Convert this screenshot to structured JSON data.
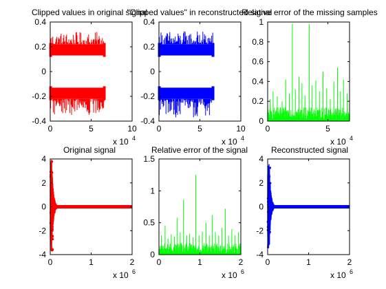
{
  "chart_data": [
    {
      "type": "scatter",
      "title": "Clipped values in original signal",
      "xlim": [
        0,
        100000
      ],
      "ylim": [
        -0.4,
        0.4
      ],
      "xticks": [
        "0",
        "5",
        "10"
      ],
      "yticks": [
        "-0.4",
        "-0.2",
        "0",
        "0.2",
        "0.4"
      ],
      "x_multiplier": {
        "base": "x 10",
        "exp": "4"
      },
      "color": "#ff0000",
      "series": [
        {
          "kind": "band",
          "x": [
            500,
            66000
          ],
          "core": [
            0.13,
            0.22
          ],
          "extent": [
            0.12,
            0.32
          ]
        },
        {
          "kind": "band",
          "x": [
            500,
            66000
          ],
          "core": [
            -0.22,
            -0.13
          ],
          "extent": [
            -0.35,
            -0.12
          ]
        }
      ]
    },
    {
      "type": "scatter",
      "title": "\"Clipped values\" in reconstructed signal",
      "xlim": [
        0,
        100000
      ],
      "ylim": [
        -0.4,
        0.4
      ],
      "xticks": [
        "0",
        "5",
        "10"
      ],
      "yticks": [
        "-0.4",
        "-0.2",
        "0",
        "0.2",
        "0.4"
      ],
      "x_multiplier": {
        "base": "x 10",
        "exp": "4"
      },
      "color": "#0000ff",
      "series": [
        {
          "kind": "band",
          "x": [
            500,
            66000
          ],
          "core": [
            0.13,
            0.22
          ],
          "extent": [
            0.12,
            0.33
          ]
        },
        {
          "kind": "band",
          "x": [
            500,
            66000
          ],
          "core": [
            -0.22,
            -0.13
          ],
          "extent": [
            -0.37,
            -0.12
          ]
        }
      ]
    },
    {
      "type": "line",
      "title": "Relative error of the missing samples",
      "xlim": [
        0,
        68000
      ],
      "ylim": [
        0,
        1
      ],
      "xticks": [
        "0",
        "5"
      ],
      "yticks": [
        "0",
        "0.2",
        "0.4",
        "0.6",
        "0.8",
        "1"
      ],
      "x_multiplier": {
        "base": "x 10",
        "exp": "4"
      },
      "color": "#00ff00",
      "series": [
        {
          "kind": "spiky",
          "base": [
            0.02,
            0.14
          ],
          "spikes": [
            {
              "x": 2000,
              "y": 0.22
            },
            {
              "x": 4500,
              "y": 0.3
            },
            {
              "x": 8000,
              "y": 0.25
            },
            {
              "x": 12000,
              "y": 0.2
            },
            {
              "x": 15000,
              "y": 0.42
            },
            {
              "x": 18000,
              "y": 0.28
            },
            {
              "x": 20500,
              "y": 0.98
            },
            {
              "x": 23000,
              "y": 0.32
            },
            {
              "x": 26000,
              "y": 0.45
            },
            {
              "x": 28500,
              "y": 0.38
            },
            {
              "x": 31000,
              "y": 0.26
            },
            {
              "x": 34500,
              "y": 0.98
            },
            {
              "x": 37000,
              "y": 0.36
            },
            {
              "x": 40000,
              "y": 0.41
            },
            {
              "x": 43000,
              "y": 0.3
            },
            {
              "x": 46000,
              "y": 0.5
            },
            {
              "x": 49000,
              "y": 0.33
            },
            {
              "x": 52000,
              "y": 0.22
            },
            {
              "x": 55000,
              "y": 0.4
            },
            {
              "x": 58000,
              "y": 0.54
            },
            {
              "x": 60500,
              "y": 0.3
            },
            {
              "x": 63000,
              "y": 0.42
            },
            {
              "x": 66000,
              "y": 0.28
            }
          ]
        }
      ]
    },
    {
      "type": "line",
      "title": "Original signal",
      "xlim": [
        0,
        2000000
      ],
      "ylim": [
        -4,
        4
      ],
      "xticks": [
        "0",
        "1",
        "2"
      ],
      "yticks": [
        "-4",
        "-2",
        "0",
        "2",
        "4"
      ],
      "x_multiplier": {
        "base": "x 10",
        "exp": "6"
      },
      "color": "#ff0000",
      "series": [
        {
          "kind": "decay",
          "peak": 4,
          "decay_end": 200000
        }
      ]
    },
    {
      "type": "line",
      "title": "Relative error of the signal",
      "xlim": [
        0,
        2000000
      ],
      "ylim": [
        0,
        1.5
      ],
      "xticks": [
        "0",
        "1",
        "2"
      ],
      "yticks": [
        "0",
        "0.5",
        "1",
        "1.5"
      ],
      "x_multiplier": {
        "base": "x 10",
        "exp": "6"
      },
      "color": "#00ff00",
      "series": [
        {
          "kind": "spiky",
          "base": [
            0.02,
            0.18
          ],
          "spikes": [
            {
              "x": 60000,
              "y": 0.3
            },
            {
              "x": 150000,
              "y": 0.45
            },
            {
              "x": 220000,
              "y": 0.25
            },
            {
              "x": 300000,
              "y": 0.32
            },
            {
              "x": 380000,
              "y": 0.28
            },
            {
              "x": 450000,
              "y": 0.58
            },
            {
              "x": 520000,
              "y": 0.35
            },
            {
              "x": 600000,
              "y": 0.86
            },
            {
              "x": 680000,
              "y": 0.3
            },
            {
              "x": 750000,
              "y": 0.33
            },
            {
              "x": 830000,
              "y": 0.27
            },
            {
              "x": 900000,
              "y": 1.25
            },
            {
              "x": 980000,
              "y": 0.3
            },
            {
              "x": 1060000,
              "y": 0.36
            },
            {
              "x": 1150000,
              "y": 0.5
            },
            {
              "x": 1230000,
              "y": 0.3
            },
            {
              "x": 1300000,
              "y": 0.62
            },
            {
              "x": 1380000,
              "y": 0.35
            },
            {
              "x": 1460000,
              "y": 0.3
            },
            {
              "x": 1540000,
              "y": 0.42
            },
            {
              "x": 1620000,
              "y": 0.72
            },
            {
              "x": 1700000,
              "y": 0.3
            },
            {
              "x": 1780000,
              "y": 0.4
            },
            {
              "x": 1860000,
              "y": 0.3
            },
            {
              "x": 1940000,
              "y": 0.35
            }
          ]
        }
      ]
    },
    {
      "type": "line",
      "title": "Reconstructed signal",
      "xlim": [
        0,
        2000000
      ],
      "ylim": [
        -4,
        4
      ],
      "xticks": [
        "0",
        "1",
        "2"
      ],
      "yticks": [
        "-4",
        "-2",
        "0",
        "2",
        "4"
      ],
      "x_multiplier": {
        "base": "x 10",
        "exp": "6"
      },
      "color": "#0000ff",
      "series": [
        {
          "kind": "decay",
          "peak": 4,
          "decay_end": 200000
        }
      ]
    }
  ]
}
